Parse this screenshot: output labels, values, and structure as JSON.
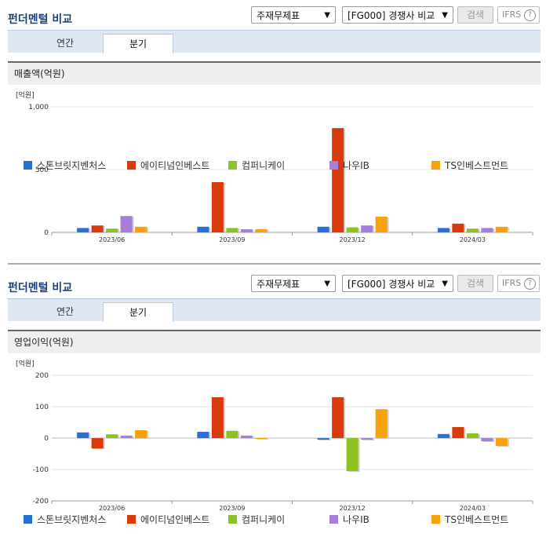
{
  "colors": [
    "#2a6fd6",
    "#d83a0b",
    "#8cc320",
    "#a57fd9",
    "#f7a20d"
  ],
  "panels": [
    {
      "title": "펀더멘털 비교",
      "select_statement": "주재무제표",
      "select_compare": "[FG000] 경쟁사 비교",
      "search_label": "검색",
      "ifrs_label": "IFRS",
      "help_label": "?",
      "tab_annual": "연간",
      "tab_quarter": "분기",
      "section_title": "매출액(억원)"
    },
    {
      "title": "펀더멘털 비교",
      "select_statement": "주재무제표",
      "select_compare": "[FG000] 경쟁사 비교",
      "search_label": "검색",
      "ifrs_label": "IFRS",
      "help_label": "?",
      "tab_annual": "연간",
      "tab_quarter": "분기",
      "section_title": "영업이익(억원)"
    }
  ],
  "chart_data": [
    {
      "type": "bar",
      "unit_label": "[억원]",
      "categories": [
        "2023/06",
        "2023/09",
        "2023/12",
        "2024/03"
      ],
      "ylim": [
        0,
        1000
      ],
      "yticks": [
        0,
        500,
        1000
      ],
      "ytick_labels": [
        "0",
        "500",
        "1,000"
      ],
      "grid": true,
      "legend_position": "bottom",
      "series": [
        {
          "name": "스톤브릿지벤처스",
          "values": [
            35,
            45,
            45,
            35
          ]
        },
        {
          "name": "에이티넘인베스트",
          "values": [
            55,
            400,
            830,
            70
          ]
        },
        {
          "name": "컴퍼니케이",
          "values": [
            30,
            35,
            40,
            30
          ]
        },
        {
          "name": "나우IB",
          "values": [
            130,
            25,
            55,
            35
          ]
        },
        {
          "name": "TS인베스트먼트",
          "values": [
            45,
            25,
            125,
            45
          ]
        }
      ]
    },
    {
      "type": "bar",
      "unit_label": "[억원]",
      "categories": [
        "2023/06",
        "2023/09",
        "2023/12",
        "2024/03"
      ],
      "ylim": [
        -200,
        200
      ],
      "yticks": [
        -200,
        -100,
        0,
        100,
        200
      ],
      "ytick_labels": [
        "-200",
        "-100",
        "0",
        "100",
        "200"
      ],
      "grid": true,
      "legend_position": "bottom",
      "series": [
        {
          "name": "스톤브릿지벤처스",
          "values": [
            18,
            20,
            -5,
            13
          ]
        },
        {
          "name": "에이티넘인베스트",
          "values": [
            -33,
            130,
            130,
            35
          ]
        },
        {
          "name": "컴퍼니케이",
          "values": [
            12,
            23,
            -105,
            15
          ]
        },
        {
          "name": "나우IB",
          "values": [
            8,
            8,
            -5,
            -10
          ]
        },
        {
          "name": "TS인베스트먼트",
          "values": [
            25,
            0,
            92,
            -25
          ]
        }
      ]
    }
  ]
}
